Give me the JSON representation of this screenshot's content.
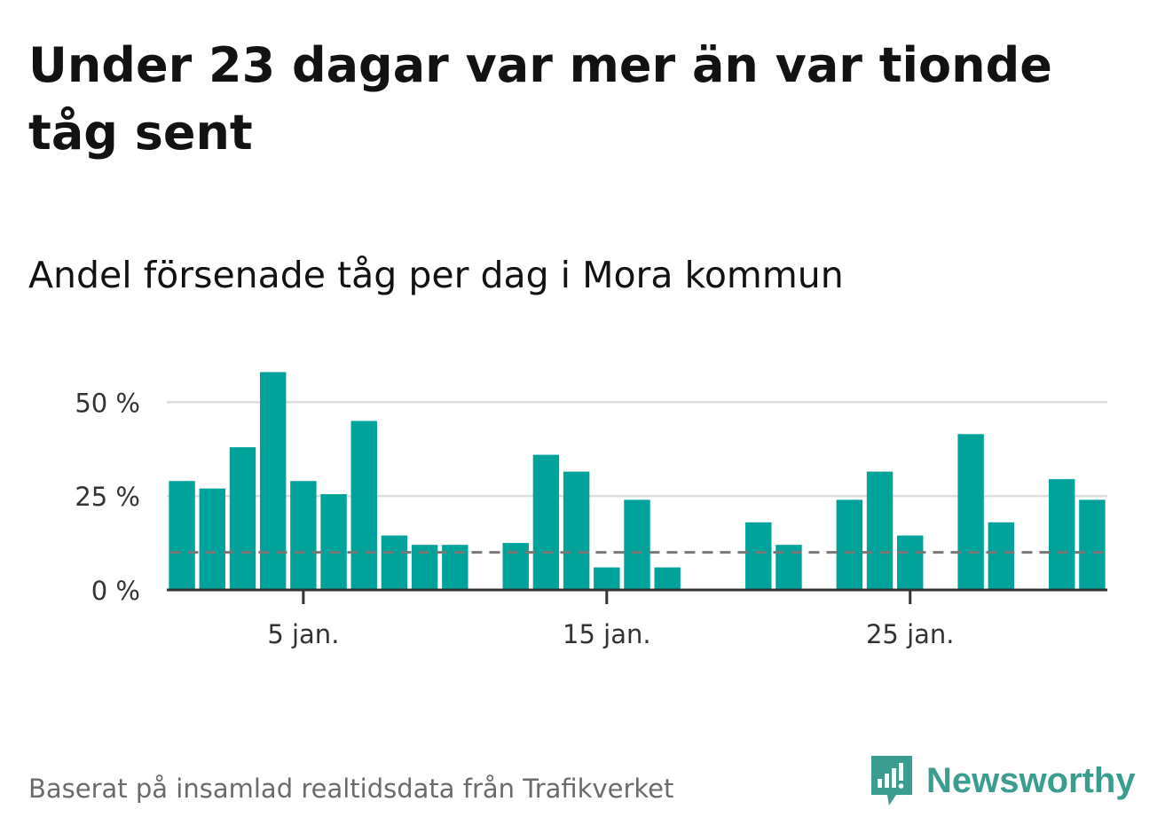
{
  "header": {
    "title": "Under 23 dagar var mer än var tionde tåg sent",
    "subtitle": "Andel försenade tåg per dag i Mora kommun"
  },
  "footer": {
    "source": "Baserat på insamlad realtidsdata från Trafikverket",
    "brand": "Newsworthy",
    "brand_icon": "newsworthy-logo-icon"
  },
  "colors": {
    "bar": "#00a39a",
    "reference_line": "#777777",
    "grid": "#dddddd",
    "axis": "#333333",
    "brand": "#3a9d90"
  },
  "chart_data": {
    "type": "bar",
    "x": [
      1,
      2,
      3,
      4,
      5,
      6,
      7,
      8,
      9,
      10,
      11,
      12,
      13,
      14,
      15,
      16,
      17,
      18,
      19,
      20,
      21,
      22,
      23,
      24,
      25,
      26,
      27,
      28,
      29,
      30,
      31
    ],
    "values": [
      29,
      27,
      38,
      58,
      29,
      25.5,
      45,
      14.5,
      12,
      12,
      null,
      12.5,
      36,
      31.5,
      6,
      24,
      6,
      null,
      null,
      18,
      12,
      null,
      24,
      31.5,
      14.5,
      null,
      41.5,
      18,
      null,
      29.5,
      24
    ],
    "x_ticks": [
      5,
      15,
      25
    ],
    "x_tick_labels": [
      "5 jan.",
      "15 jan.",
      "25 jan."
    ],
    "y_ticks": [
      0,
      25,
      50
    ],
    "y_tick_labels": [
      "0 %",
      "25 %",
      "50 %"
    ],
    "ylim": [
      0,
      60
    ],
    "xlim": [
      0.5,
      31.5
    ],
    "reference_line": 10,
    "grid": true
  }
}
